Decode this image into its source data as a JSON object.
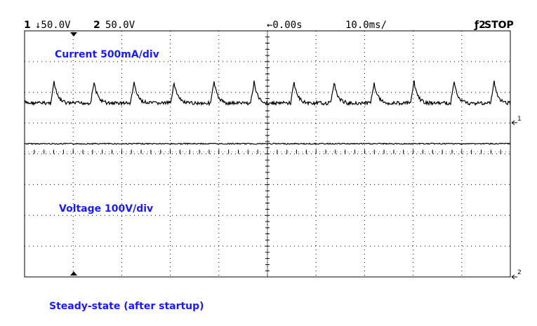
{
  "header": {
    "channel1": "1",
    "channel1_scale": "↓50.0V",
    "channel2": "2",
    "channel2_scale": "50.0V",
    "time_offset": "←0.00s",
    "time_scale": "10.0ms/",
    "trigger": "ƒ2",
    "status": "STOP"
  },
  "traces": {
    "current_label": "Current 500mA/div",
    "voltage_label": "Voltage 100V/div"
  },
  "markers": {
    "channel1": "1",
    "channel2": "2"
  },
  "caption": "Steady-state (after startup)"
}
